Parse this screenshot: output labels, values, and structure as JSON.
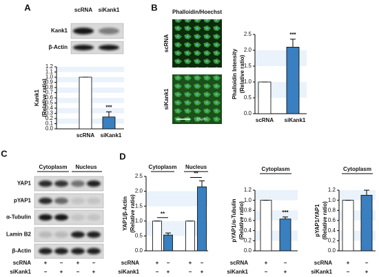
{
  "figure": {
    "panel_labels": [
      "A",
      "B",
      "C",
      "D"
    ],
    "blot_A": {
      "columns": [
        "scRNA",
        "siKank1"
      ],
      "rows": [
        "Kank1",
        "β-Actin"
      ]
    },
    "imaging": {
      "title": "Phalloidin/Hoechst",
      "rows": [
        "scRNA",
        "siKank1"
      ],
      "scale": "25μm"
    },
    "blot_C": {
      "fractions": [
        "Cytoplasm",
        "Nucleus"
      ],
      "rows": [
        "YAP1",
        "pYAP1",
        "α-Tubulin",
        "Lamin B2",
        "β-Actin"
      ],
      "treatments": [
        {
          "name": "scRNA",
          "signs": [
            "+",
            "−",
            "+",
            "−"
          ]
        },
        {
          "name": "siKank1",
          "signs": [
            "−",
            "+",
            "−",
            "+"
          ]
        }
      ]
    }
  },
  "chart_data": [
    {
      "type": "bar",
      "ylabel": [
        "Kank1",
        "(Relative ratio)"
      ],
      "categories": [
        "scRNA",
        "siKank1"
      ],
      "values": [
        1.0,
        0.23
      ],
      "errors": [
        0.0,
        0.1
      ],
      "colors": [
        "#ffffff",
        "#3a7fbf"
      ],
      "significance": [
        null,
        "***"
      ],
      "ylim": [
        0,
        1.2
      ],
      "yticks": [
        {
          "value": 0,
          "label": "0.0"
        },
        0.1,
        0.2,
        0.3,
        0.4,
        0.5,
        0.6,
        0.7,
        0.8,
        0.9,
        {
          "value": 1,
          "label": "1.0"
        },
        1.1,
        1.2
      ]
    },
    {
      "type": "bar",
      "ylabel": [
        "Phalloidin Intensity",
        "(Relative ratio)"
      ],
      "categories": [
        "scRNA",
        "siKank1"
      ],
      "values": [
        1.0,
        2.1
      ],
      "errors": [
        0.0,
        0.25
      ],
      "colors": [
        "#ffffff",
        "#3a7fbf"
      ],
      "significance": [
        null,
        "***"
      ],
      "ylim": [
        0,
        2.5
      ],
      "yticks": [
        {
          "value": 0,
          "label": "0.0"
        },
        0.5,
        {
          "value": 1,
          "label": "1.0"
        },
        1.5,
        {
          "value": 2,
          "label": "2.0"
        },
        2.5
      ]
    },
    {
      "type": "bar",
      "ylabel": [
        "YAP1/β-Actin",
        "(Relative ratio)"
      ],
      "groups": [
        "Cytoplasm",
        "Nucleus"
      ],
      "rows": [
        {
          "name": "scRNA",
          "signs": [
            "+",
            "−",
            "+",
            "−"
          ]
        },
        {
          "name": "siKank1",
          "signs": [
            "−",
            "+",
            "−",
            "+"
          ]
        }
      ],
      "values": [
        1.0,
        0.53,
        1.0,
        2.15
      ],
      "errors": [
        0.0,
        0.07,
        0.0,
        0.2
      ],
      "colors": [
        "#ffffff",
        "#3a7fbf",
        "#ffffff",
        "#3a7fbf"
      ],
      "significance": [
        null,
        "**",
        null,
        "**"
      ],
      "significance_brackets": true,
      "ylim": [
        0,
        2.5
      ],
      "yticks": [
        {
          "value": 0,
          "label": "0.0"
        },
        0.5,
        {
          "value": 1,
          "label": "1.0"
        },
        1.5,
        {
          "value": 2,
          "label": "2.0"
        },
        2.5
      ]
    },
    {
      "type": "bar",
      "ylabel": [
        "pYAP1/α-Tubulin",
        "(Relative ratio)"
      ],
      "groups": [
        "Cytoplasm"
      ],
      "rows": [
        {
          "name": "scRNA",
          "signs": [
            "+",
            "−"
          ]
        },
        {
          "name": "siKank1",
          "signs": [
            "−",
            "+"
          ]
        }
      ],
      "values": [
        1.0,
        0.63
      ],
      "errors": [
        0.0,
        0.04
      ],
      "colors": [
        "#ffffff",
        "#3a7fbf"
      ],
      "significance": [
        null,
        "***"
      ],
      "ylim": [
        0,
        1.2
      ],
      "yticks": [
        {
          "value": 0,
          "label": "0.0"
        },
        0.2,
        0.4,
        0.6,
        0.8,
        {
          "value": 1,
          "label": "1.0"
        },
        1.2
      ]
    },
    {
      "type": "bar",
      "ylabel": [
        "pYAP1/YAP1",
        "(Relative ratio)"
      ],
      "groups": [
        "Cytoplasm"
      ],
      "rows": [
        {
          "name": "scRNA",
          "signs": [
            "+",
            "−"
          ]
        },
        {
          "name": "siKank1",
          "signs": [
            "−",
            "+"
          ]
        }
      ],
      "values": [
        1.0,
        1.1
      ],
      "errors": [
        0.0,
        0.1
      ],
      "colors": [
        "#ffffff",
        "#3a7fbf"
      ],
      "significance": [
        null,
        null
      ],
      "ylim": [
        0,
        1.2
      ],
      "yticks": [
        {
          "value": 0,
          "label": "0.0"
        },
        0.2,
        0.4,
        0.6,
        0.8,
        {
          "value": 1,
          "label": "1.0"
        },
        1.2
      ]
    }
  ]
}
